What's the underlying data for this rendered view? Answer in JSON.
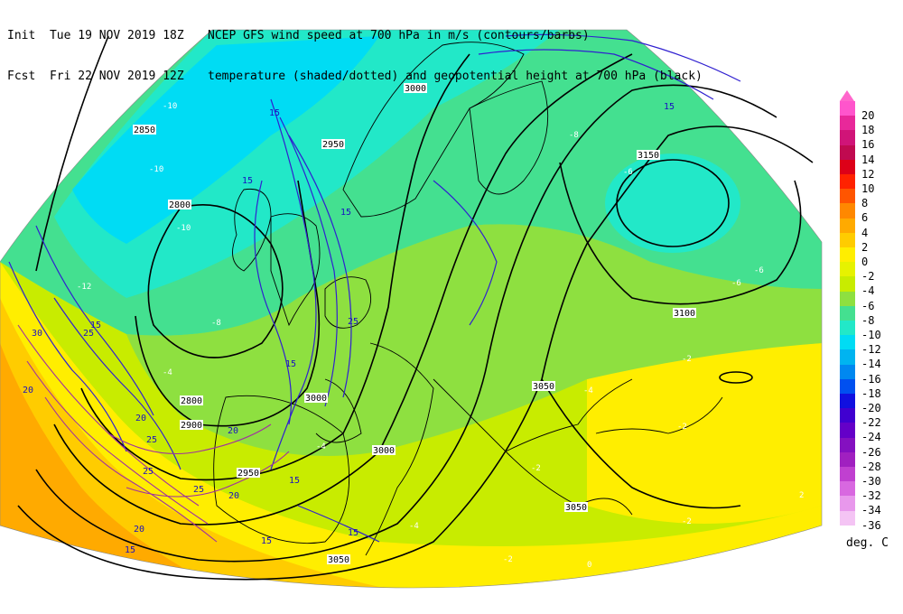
{
  "header": {
    "init_prefix": "Init",
    "init_time": "Tue 19 NOV 2019 18Z",
    "fcst_prefix": "Fcst",
    "fcst_time": "Fri 22 NOV 2019 12Z",
    "line1": "NCEP GFS wind speed at 700 hPa in m/s (contours/barbs)",
    "line2": "temperature (shaded/dotted) and geopotential height at 700 hPa (black)"
  },
  "legend": {
    "unit": "deg. C",
    "items": [
      {
        "value": "20",
        "color": "#ff55cc"
      },
      {
        "value": "18",
        "color": "#e8289a"
      },
      {
        "value": "16",
        "color": "#d01478"
      },
      {
        "value": "14",
        "color": "#c00a50"
      },
      {
        "value": "12",
        "color": "#dd0018"
      },
      {
        "value": "10",
        "color": "#ff2200"
      },
      {
        "value": "8",
        "color": "#ff5500"
      },
      {
        "value": "6",
        "color": "#ff8800"
      },
      {
        "value": "4",
        "color": "#ffaa00"
      },
      {
        "value": "2",
        "color": "#ffcc00"
      },
      {
        "value": "0",
        "color": "#ffee00"
      },
      {
        "value": "-2",
        "color": "#e6f200"
      },
      {
        "value": "-4",
        "color": "#c8ec00"
      },
      {
        "value": "-6",
        "color": "#8ee040"
      },
      {
        "value": "-8",
        "color": "#44e090"
      },
      {
        "value": "-10",
        "color": "#22e8c8"
      },
      {
        "value": "-12",
        "color": "#00dcf4"
      },
      {
        "value": "-14",
        "color": "#00b4f0"
      },
      {
        "value": "-16",
        "color": "#0088f0"
      },
      {
        "value": "-18",
        "color": "#0050f0"
      },
      {
        "value": "-20",
        "color": "#1010e0"
      },
      {
        "value": "-22",
        "color": "#4000d0"
      },
      {
        "value": "-24",
        "color": "#6400c8"
      },
      {
        "value": "-26",
        "color": "#8410c0"
      },
      {
        "value": "-28",
        "color": "#a020c0"
      },
      {
        "value": "-30",
        "color": "#c040d0"
      },
      {
        "value": "-32",
        "color": "#d868e0"
      },
      {
        "value": "-34",
        "color": "#e898ec"
      },
      {
        "value": "-36",
        "color": "#f4c4f4"
      }
    ]
  },
  "map": {
    "geopotential_labels": [
      "2850",
      "2950",
      "3000",
      "3150",
      "2800",
      "3100",
      "2800",
      "2900",
      "2950",
      "3000",
      "3050",
      "3000",
      "3050",
      "3050"
    ],
    "wind_labels": [
      "15",
      "15",
      "15",
      "15",
      "25",
      "20",
      "25",
      "20",
      "15",
      "15",
      "15",
      "20",
      "30",
      "25",
      "25",
      "25",
      "20",
      "20",
      "15",
      "15",
      "15"
    ],
    "temp_labels": [
      "-10",
      "-10",
      "-10",
      "-12",
      "-8",
      "-6",
      "-8",
      "-4",
      "-4",
      "-4",
      "-6",
      "-2",
      "-2",
      "-4",
      "-2",
      "-2",
      "-6",
      "0",
      "2",
      "-2"
    ]
  }
}
